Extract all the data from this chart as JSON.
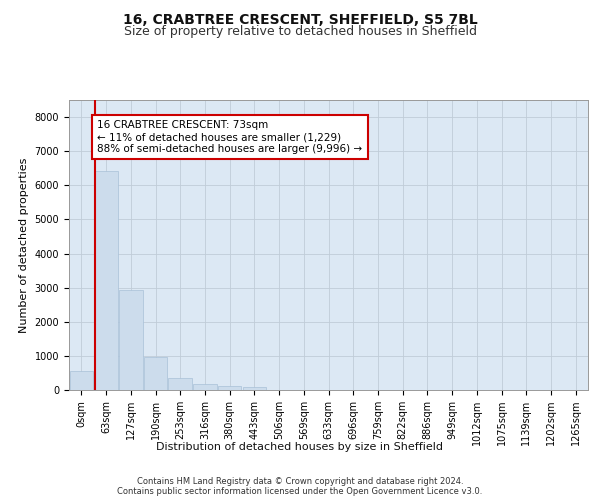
{
  "title1": "16, CRABTREE CRESCENT, SHEFFIELD, S5 7BL",
  "title2": "Size of property relative to detached houses in Sheffield",
  "xlabel": "Distribution of detached houses by size in Sheffield",
  "ylabel": "Number of detached properties",
  "footer1": "Contains HM Land Registry data © Crown copyright and database right 2024.",
  "footer2": "Contains public sector information licensed under the Open Government Licence v3.0.",
  "bar_labels": [
    "0sqm",
    "63sqm",
    "127sqm",
    "190sqm",
    "253sqm",
    "316sqm",
    "380sqm",
    "443sqm",
    "506sqm",
    "569sqm",
    "633sqm",
    "696sqm",
    "759sqm",
    "822sqm",
    "886sqm",
    "949sqm",
    "1012sqm",
    "1075sqm",
    "1139sqm",
    "1202sqm",
    "1265sqm"
  ],
  "bar_values": [
    570,
    6430,
    2920,
    975,
    355,
    175,
    105,
    75,
    0,
    0,
    0,
    0,
    0,
    0,
    0,
    0,
    0,
    0,
    0,
    0,
    0
  ],
  "bar_color": "#ccdcec",
  "bar_edge_color": "#a8c0d8",
  "vline_color": "#cc0000",
  "annotation_text": "16 CRABTREE CRESCENT: 73sqm\n← 11% of detached houses are smaller (1,229)\n88% of semi-detached houses are larger (9,996) →",
  "annotation_box_color": "#cc0000",
  "ylim": [
    0,
    8500
  ],
  "yticks": [
    0,
    1000,
    2000,
    3000,
    4000,
    5000,
    6000,
    7000,
    8000
  ],
  "grid_color": "#c0ccd8",
  "bg_color": "#dce8f4",
  "title1_fontsize": 10,
  "title2_fontsize": 9,
  "axis_label_fontsize": 8,
  "tick_fontsize": 7,
  "footer_fontsize": 6,
  "annotation_fontsize": 7.5
}
